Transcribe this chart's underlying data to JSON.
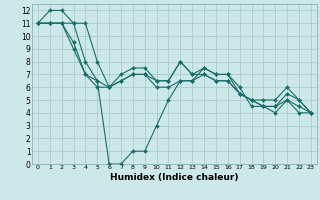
{
  "title": "",
  "xlabel": "Humidex (Indice chaleur)",
  "bg_color": "#cce8e8",
  "grid_color": "#aacccc",
  "line_color": "#1a6e6a",
  "marker_color": "#1a6e6a",
  "xlim": [
    -0.5,
    23.5
  ],
  "ylim": [
    0,
    12.5
  ],
  "xticks": [
    0,
    1,
    2,
    3,
    4,
    5,
    6,
    7,
    8,
    9,
    10,
    11,
    12,
    13,
    14,
    15,
    16,
    17,
    18,
    19,
    20,
    21,
    22,
    23
  ],
  "yticks": [
    0,
    1,
    2,
    3,
    4,
    5,
    6,
    7,
    8,
    9,
    10,
    11,
    12
  ],
  "series": [
    [
      11,
      11,
      11,
      9.5,
      7,
      6.5,
      0,
      0,
      1,
      1,
      3,
      5,
      6.5,
      6.5,
      7.5,
      7,
      7,
      6,
      4.5,
      4.5,
      4,
      5,
      4,
      4
    ],
    [
      11,
      12,
      12,
      11,
      11,
      8,
      6,
      7,
      7.5,
      7.5,
      6.5,
      6.5,
      8,
      7,
      7.5,
      7,
      7,
      5.5,
      5,
      5,
      5,
      6,
      5,
      4
    ],
    [
      11,
      11,
      11,
      9,
      7,
      6,
      6,
      6.5,
      7,
      7,
      6,
      6,
      6.5,
      6.5,
      7,
      6.5,
      6.5,
      5.5,
      5,
      4.5,
      4.5,
      5,
      4.5,
      4
    ],
    [
      11,
      11,
      11,
      11,
      8,
      6.5,
      6,
      6.5,
      7,
      7,
      6.5,
      6.5,
      8,
      7,
      7,
      6.5,
      6.5,
      5.5,
      5,
      4.5,
      4.5,
      5.5,
      5,
      4
    ]
  ]
}
